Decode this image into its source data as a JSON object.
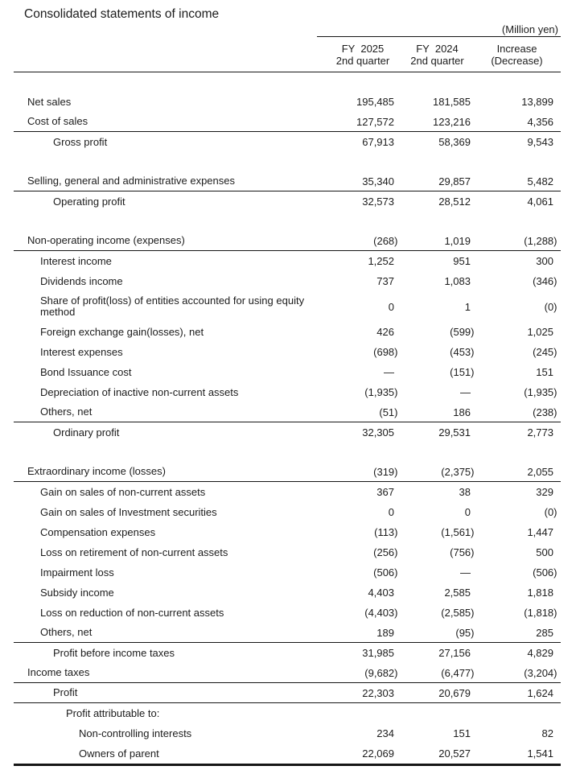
{
  "title": "Consolidated statements of income",
  "unit_note": "(Million yen)",
  "columns": [
    {
      "line1": "FY  2025",
      "line2": "2nd quarter"
    },
    {
      "line1": "FY  2024",
      "line2": "2nd quarter"
    },
    {
      "line1": "Increase",
      "line2": "(Decrease)"
    }
  ],
  "rows": [
    {
      "label": "Net sales",
      "indent": 0,
      "values": [
        "195,485",
        "181,585",
        "13,899"
      ],
      "rule_below": false
    },
    {
      "label": "Cost of sales",
      "indent": 0,
      "values": [
        "127,572",
        "123,216",
        "4,356"
      ],
      "rule_below": true
    },
    {
      "label": "Gross profit",
      "indent": 2,
      "values": [
        "67,913",
        "58,369",
        "9,543"
      ],
      "rule_below": false
    },
    {
      "spacer": true
    },
    {
      "label": "Selling, general and administrative expenses",
      "indent": 0,
      "values": [
        "35,340",
        "29,857",
        "5,482"
      ],
      "rule_below": true
    },
    {
      "label": "Operating profit",
      "indent": 2,
      "values": [
        "32,573",
        "28,512",
        "4,061"
      ],
      "rule_below": false
    },
    {
      "spacer": true
    },
    {
      "label": "Non-operating income (expenses)",
      "indent": 0,
      "values": [
        "(268)",
        "1,019",
        "(1,288)"
      ],
      "rule_below": true
    },
    {
      "label": "Interest income",
      "indent": 1,
      "values": [
        "1,252",
        "951",
        "300"
      ],
      "rule_below": false
    },
    {
      "label": "Dividends income",
      "indent": 1,
      "values": [
        "737",
        "1,083",
        "(346)"
      ],
      "rule_below": false
    },
    {
      "label": "Share of profit(loss) of entities accounted for using equity method",
      "indent": 1,
      "values": [
        "0",
        "1",
        "(0)"
      ],
      "rule_below": false
    },
    {
      "label": "Foreign exchange gain(losses), net",
      "indent": 1,
      "values": [
        "426",
        "(599)",
        "1,025"
      ],
      "rule_below": false
    },
    {
      "label": "Interest expenses",
      "indent": 1,
      "values": [
        "(698)",
        "(453)",
        "(245)"
      ],
      "rule_below": false
    },
    {
      "label": "Bond Issuance cost",
      "indent": 1,
      "values": [
        "—",
        "(151)",
        "151"
      ],
      "rule_below": false
    },
    {
      "label": "Depreciation of inactive non-current assets",
      "indent": 1,
      "values": [
        "(1,935)",
        "—",
        "(1,935)"
      ],
      "rule_below": false
    },
    {
      "label": "Others, net",
      "indent": 1,
      "values": [
        "(51)",
        "186",
        "(238)"
      ],
      "rule_below": true
    },
    {
      "label": "Ordinary profit",
      "indent": 2,
      "values": [
        "32,305",
        "29,531",
        "2,773"
      ],
      "rule_below": false
    },
    {
      "spacer": true
    },
    {
      "label": "Extraordinary income (losses)",
      "indent": 0,
      "values": [
        "(319)",
        "(2,375)",
        "2,055"
      ],
      "rule_below": true
    },
    {
      "label": "Gain on sales of non-current assets",
      "indent": 1,
      "values": [
        "367",
        "38",
        "329"
      ],
      "rule_below": false
    },
    {
      "label": "Gain on sales of Investment securities",
      "indent": 1,
      "values": [
        "0",
        "0",
        "(0)"
      ],
      "rule_below": false
    },
    {
      "label": "Compensation expenses",
      "indent": 1,
      "values": [
        "(113)",
        "(1,561)",
        "1,447"
      ],
      "rule_below": false
    },
    {
      "label": "Loss on retirement of non-current assets",
      "indent": 1,
      "values": [
        "(256)",
        "(756)",
        "500"
      ],
      "rule_below": false
    },
    {
      "label": "Impairment loss",
      "indent": 1,
      "values": [
        "(506)",
        "—",
        "(506)"
      ],
      "rule_below": false
    },
    {
      "label": "Subsidy income",
      "indent": 1,
      "values": [
        "4,403",
        "2,585",
        "1,818"
      ],
      "rule_below": false
    },
    {
      "label": "Loss on reduction of non-current assets",
      "indent": 1,
      "values": [
        "(4,403)",
        "(2,585)",
        "(1,818)"
      ],
      "rule_below": false
    },
    {
      "label": "Others, net",
      "indent": 1,
      "values": [
        "189",
        "(95)",
        "285"
      ],
      "rule_below": true
    },
    {
      "label": "Profit before income taxes",
      "indent": 2,
      "values": [
        "31,985",
        "27,156",
        "4,829"
      ],
      "rule_below": false
    },
    {
      "label": "Income taxes",
      "indent": 0,
      "values": [
        "(9,682)",
        "(6,477)",
        "(3,204)"
      ],
      "rule_below": true
    },
    {
      "label": "Profit",
      "indent": 2,
      "values": [
        "22,303",
        "20,679",
        "1,624"
      ],
      "rule_below": true
    },
    {
      "label": "Profit attributable to:",
      "indent": 3,
      "values": [
        "",
        "",
        ""
      ],
      "rule_below": false
    },
    {
      "label": "Non-controlling interests",
      "indent": 4,
      "values": [
        "234",
        "151",
        "82"
      ],
      "rule_below": false
    },
    {
      "label": "Owners of parent",
      "indent": 4,
      "values": [
        "22,069",
        "20,527",
        "1,541"
      ],
      "rule_below": false
    }
  ]
}
